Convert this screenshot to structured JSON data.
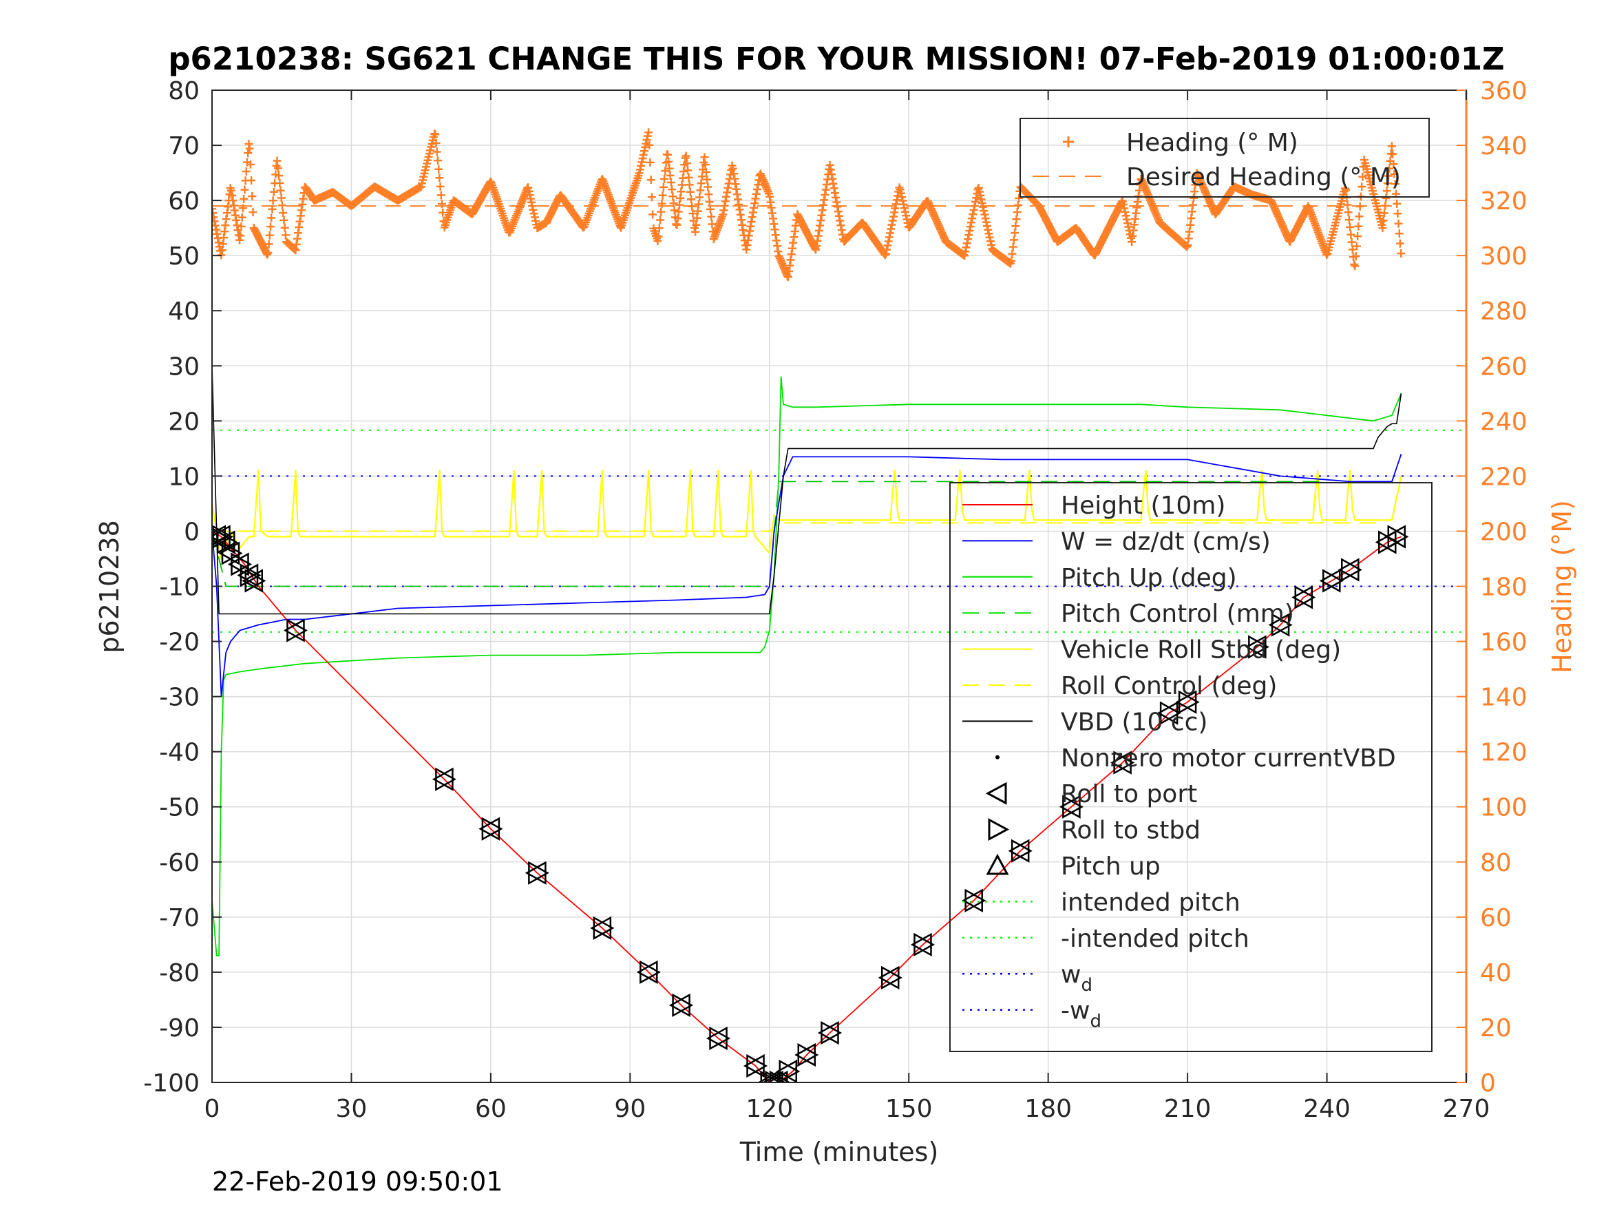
{
  "chart_data": {
    "type": "line",
    "title": "p6210238: SG621 CHANGE THIS FOR YOUR MISSION! 07-Feb-2019 01:00:01Z",
    "xlabel": "Time (minutes)",
    "ylabel": "p6210238",
    "ylabel_right": "Heading (°M)",
    "footer": "22-Feb-2019 09:50:01",
    "xlim": [
      0,
      270
    ],
    "ylim": [
      -100,
      80
    ],
    "ylim_right": [
      0,
      360
    ],
    "x_ticks": [
      "0",
      "30",
      "60",
      "90",
      "120",
      "150",
      "180",
      "210",
      "240",
      "270"
    ],
    "y_ticks": [
      "-100",
      "-90",
      "-80",
      "-70",
      "-60",
      "-50",
      "-40",
      "-30",
      "-20",
      "-10",
      "0",
      "10",
      "20",
      "30",
      "40",
      "50",
      "60",
      "70",
      "80"
    ],
    "y_ticks_right": [
      "0",
      "20",
      "40",
      "60",
      "80",
      "100",
      "120",
      "140",
      "160",
      "180",
      "200",
      "220",
      "240",
      "260",
      "280",
      "300",
      "320",
      "340",
      "360"
    ],
    "grid": true,
    "colors": {
      "heading": "#ff7f27",
      "height": "#ff0000",
      "w": "#0000ff",
      "pitch": "#00e000",
      "roll": "#ffff00",
      "vbd": "#000000",
      "intended_pitch": "#00ff00",
      "wd": "#0000ff"
    },
    "legend_heading": {
      "placement": "top-right",
      "entries": [
        {
          "label": "Heading (° M)",
          "style": "plus",
          "color": "#ff7f27"
        },
        {
          "label": "Desired Heading (° M)",
          "style": "dash",
          "color": "#ff7f27"
        }
      ]
    },
    "legend_main": {
      "placement": "right",
      "entries": [
        {
          "label": "Height (10m)",
          "style": "line",
          "color": "#ff0000"
        },
        {
          "label": "W = dz/dt (cm/s)",
          "style": "line",
          "color": "#0000ff"
        },
        {
          "label": "Pitch Up (deg)",
          "style": "line",
          "color": "#00e000"
        },
        {
          "label": "Pitch Control (mm)",
          "style": "dash",
          "color": "#00e000"
        },
        {
          "label": "Vehicle Roll Stbd (deg)",
          "style": "line",
          "color": "#ffff00"
        },
        {
          "label": "Roll Control (deg)",
          "style": "dash",
          "color": "#ffff00"
        },
        {
          "label": "VBD (10 cc)",
          "style": "line",
          "color": "#000000"
        },
        {
          "label": "Nonzero motor currentVBD",
          "style": "dot",
          "color": "#000000"
        },
        {
          "label": "Roll to port",
          "style": "tri-left",
          "color": "#000000"
        },
        {
          "label": "Roll to stbd",
          "style": "tri-right",
          "color": "#000000"
        },
        {
          "label": "Pitch up",
          "style": "tri-up",
          "color": "#000000"
        },
        {
          "label": "intended pitch",
          "style": "dot-line",
          "color": "#00ff00"
        },
        {
          "label": "-intended pitch",
          "style": "dot-line",
          "color": "#00ff00"
        },
        {
          "label": "w",
          "sub": "d",
          "style": "dot-line",
          "color": "#0000ff"
        },
        {
          "label": "-w",
          "sub": "d",
          "style": "dot-line",
          "color": "#0000ff"
        }
      ]
    },
    "desired_heading": 318,
    "heading_series": {
      "name": "Heading (° M)",
      "x": [
        0,
        2,
        4,
        6,
        8,
        9,
        12,
        14,
        16,
        18,
        20,
        22,
        26,
        30,
        35,
        40,
        45,
        48,
        50,
        52,
        56,
        60,
        64,
        68,
        70,
        72,
        75,
        80,
        84,
        88,
        92,
        94,
        95,
        96,
        98,
        100,
        102,
        104,
        106,
        108,
        110,
        112,
        115,
        118,
        120,
        122,
        124,
        126,
        130,
        133,
        136,
        140,
        145,
        148,
        150,
        154,
        158,
        162,
        165,
        168,
        172,
        174,
        178,
        182,
        186,
        190,
        196,
        198,
        200,
        204,
        210,
        212,
        216,
        220,
        224,
        228,
        232,
        236,
        240,
        244,
        246,
        248,
        252,
        254,
        256
      ],
      "values": [
        317,
        300,
        325,
        305,
        342,
        310,
        300,
        335,
        305,
        302,
        325,
        320,
        323,
        318,
        325,
        320,
        325,
        345,
        310,
        320,
        315,
        327,
        308,
        325,
        310,
        312,
        322,
        310,
        328,
        310,
        330,
        345,
        310,
        305,
        338,
        310,
        337,
        308,
        336,
        306,
        315,
        333,
        302,
        330,
        322,
        300,
        292,
        315,
        302,
        333,
        305,
        312,
        300,
        325,
        310,
        320,
        305,
        300,
        325,
        302,
        297,
        325,
        318,
        305,
        310,
        300,
        320,
        305,
        328,
        312,
        303,
        330,
        315,
        325,
        322,
        320,
        305,
        318,
        300,
        325,
        295,
        335,
        310,
        340,
        300
      ]
    },
    "series": [
      {
        "name": "Height (10m)",
        "x": [
          0,
          2,
          4,
          7,
          10,
          18,
          50,
          60,
          70,
          84,
          94,
          101,
          109,
          117,
          120,
          122,
          125,
          128,
          133,
          146,
          153,
          164,
          174,
          185,
          196,
          206,
          210,
          225,
          230,
          235,
          241,
          245,
          253,
          256
        ],
        "values": [
          0,
          -1,
          -3,
          -6,
          -10,
          -18,
          -45,
          -54,
          -62,
          -72,
          -80,
          -86,
          -92,
          -97,
          -100,
          -100,
          -98,
          -95,
          -91,
          -81,
          -75,
          -67,
          -58,
          -50,
          -42,
          -33,
          -31,
          -21,
          -17,
          -12,
          -9,
          -7,
          -2,
          -1
        ]
      },
      {
        "name": "W = dz/dt (cm/s)",
        "x": [
          0,
          1,
          2,
          3,
          4,
          6,
          10,
          16,
          20,
          30,
          40,
          60,
          80,
          100,
          115,
          119,
          120,
          121,
          123,
          125,
          130,
          150,
          170,
          190,
          210,
          230,
          245,
          250,
          254,
          256
        ],
        "values": [
          0,
          -10,
          -30,
          -22,
          -20,
          -18,
          -17,
          -16,
          -16,
          -15,
          -14,
          -13.5,
          -13,
          -12.5,
          -12,
          -11.5,
          -10,
          0,
          10,
          13.5,
          13.5,
          13.5,
          13,
          13,
          13,
          10,
          9,
          9,
          9,
          14
        ]
      },
      {
        "name": "Pitch Up (deg)",
        "x": [
          0,
          1,
          1.5,
          2,
          2.5,
          3,
          6,
          10,
          20,
          40,
          60,
          80,
          100,
          115,
          118,
          119,
          120,
          121,
          122,
          122.5,
          123,
          125,
          130,
          150,
          170,
          200,
          210,
          230,
          245,
          250,
          254,
          256
        ],
        "values": [
          -67,
          -77,
          -77,
          -40,
          -27,
          -26,
          -25.5,
          -25,
          -24,
          -23,
          -22.5,
          -22.5,
          -22,
          -22,
          -22,
          -21,
          -18,
          -8,
          10,
          28,
          23,
          22.5,
          22.5,
          23,
          23,
          23,
          22.5,
          22,
          20.5,
          20,
          21,
          25
        ]
      },
      {
        "name": "Pitch Control (mm)",
        "x": [
          0,
          3,
          8,
          120,
          122,
          124,
          126,
          240
        ],
        "values": [
          0,
          -10,
          -10,
          -10,
          9,
          9,
          9,
          9
        ]
      },
      {
        "name": "Vehicle Roll Stbd (deg)",
        "x": [
          0,
          2,
          4,
          6,
          8,
          9,
          9.5,
          10,
          10.5,
          12,
          17,
          17.5,
          18,
          18.5,
          19,
          48,
          48.5,
          49,
          49.5,
          50,
          64,
          64.5,
          65,
          65.5,
          66,
          70,
          70.5,
          71,
          71.5,
          72,
          83,
          83.5,
          84,
          84.5,
          85,
          93,
          93.5,
          94,
          94.5,
          95,
          102,
          102.5,
          103,
          103.5,
          104,
          108,
          108.5,
          109,
          109.5,
          110,
          115,
          115.5,
          116,
          116.5,
          117,
          120,
          121,
          122,
          124,
          130,
          140,
          145,
          146,
          146.5,
          147,
          147.5,
          148,
          160,
          160.5,
          161,
          161.5,
          162,
          175,
          175.5,
          176,
          176.5,
          177,
          200,
          200.5,
          201,
          201.5,
          202,
          225,
          225.5,
          226,
          226.5,
          227,
          237,
          237.5,
          238,
          238.5,
          239,
          244,
          244.5,
          245,
          245.5,
          246,
          252,
          254,
          256
        ],
        "values": [
          5,
          -5,
          0,
          -3,
          -1,
          -1,
          5,
          11,
          0,
          -1,
          -1,
          5,
          11,
          0,
          -1,
          -1,
          5,
          11,
          0,
          -1,
          -1,
          5,
          11,
          0,
          -1,
          -1,
          5,
          11,
          0,
          -1,
          -1,
          5,
          11,
          0,
          -1,
          -1,
          5,
          11,
          0,
          -1,
          -1,
          5,
          11,
          0,
          -1,
          -1,
          5,
          11,
          0,
          -1,
          -1,
          5,
          11,
          0,
          -1,
          -4,
          3,
          2,
          2,
          2,
          2,
          2,
          2,
          7,
          11,
          4,
          2,
          2,
          7,
          11,
          4,
          2,
          2,
          7,
          11,
          4,
          2,
          2,
          7,
          11,
          4,
          2,
          2,
          7,
          11,
          4,
          2,
          2,
          7,
          11,
          4,
          2,
          2,
          7,
          11,
          4,
          2,
          2,
          2,
          10
        ]
      },
      {
        "name": "Roll Control (deg)",
        "x": [
          0,
          10,
          40,
          120,
          122,
          124,
          160,
          252
        ],
        "values": [
          0,
          0,
          0,
          0,
          1.5,
          1.5,
          1.5,
          1.5
        ]
      },
      {
        "name": "VBD (10 cc)",
        "x": [
          0,
          1,
          1.5,
          2,
          120,
          121,
          123,
          124,
          250,
          251,
          252,
          253,
          254,
          255,
          256
        ],
        "values": [
          30,
          0,
          -15,
          -15,
          -15,
          -8,
          10,
          15,
          15,
          17,
          18,
          19,
          19.5,
          19.5,
          25
        ]
      },
      {
        "name": "intended pitch",
        "x": [
          0,
          270
        ],
        "values": [
          18.3,
          18.3
        ]
      },
      {
        "name": "-intended pitch",
        "x": [
          0,
          270
        ],
        "values": [
          -18.3,
          -18.3
        ]
      },
      {
        "name": "w_d",
        "x": [
          0,
          270
        ],
        "values": [
          10,
          10
        ]
      },
      {
        "name": "-w_d",
        "x": [
          0,
          270
        ],
        "values": [
          -10,
          -10
        ]
      }
    ],
    "roll_events": {
      "x": [
        1,
        2,
        3,
        4,
        6,
        8,
        9,
        18,
        50,
        60,
        70,
        84,
        94,
        101,
        109,
        117,
        120,
        121,
        122,
        124,
        128,
        133,
        146,
        153,
        164,
        174,
        185,
        196,
        206,
        210,
        225,
        230,
        235,
        241,
        245,
        253,
        255
      ],
      "values": [
        -1,
        -1,
        -2,
        -4,
        -6,
        -8,
        -9,
        -18,
        -45,
        -54,
        -62,
        -72,
        -80,
        -86,
        -92,
        -97,
        -100,
        -100,
        -100,
        -98,
        -95,
        -91,
        -81,
        -75,
        -67,
        -58,
        -50,
        -42,
        -33,
        -31,
        -21,
        -17,
        -12,
        -9,
        -7,
        -2,
        -1
      ]
    }
  }
}
